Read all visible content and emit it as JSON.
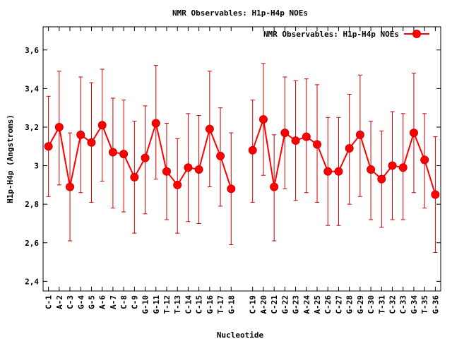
{
  "chart_data": {
    "type": "line",
    "title": "NMR Observables: H1p-H4p NOEs",
    "xlabel": "Nucleotide",
    "ylabel": "H1p-H4p (Angstroms)",
    "ylim": [
      2.35,
      3.72
    ],
    "yticks": [
      2.4,
      2.6,
      2.8,
      3.0,
      3.2,
      3.4,
      3.6
    ],
    "ytick_labels": [
      "2,4",
      "2,6",
      "2,8",
      "3",
      "3,2",
      "3,4",
      "3,6"
    ],
    "legend": {
      "label": "NMR Observables: H1p-H4p NOEs",
      "placement": "top-right"
    },
    "colors": {
      "series": "#ff0000",
      "errorbar": "#cc0000",
      "axis": "#000000"
    },
    "categories": [
      "C-1",
      "A-2",
      "C-3",
      "G-4",
      "G-5",
      "A-6",
      "A-7",
      "C-8",
      "C-9",
      "G-10",
      "G-11",
      "T-12",
      "T-13",
      "C-14",
      "C-15",
      "G-16",
      "T-17",
      "G-18",
      "",
      "C-19",
      "A-20",
      "C-21",
      "G-22",
      "G-23",
      "A-24",
      "A-25",
      "C-26",
      "C-27",
      "G-28",
      "G-29",
      "C-30",
      "T-31",
      "C-32",
      "C-33",
      "G-34",
      "T-35",
      "G-36"
    ],
    "values": [
      3.1,
      3.2,
      2.89,
      3.16,
      3.12,
      3.21,
      3.07,
      3.06,
      2.94,
      3.04,
      3.22,
      2.97,
      2.9,
      2.99,
      2.98,
      3.19,
      3.05,
      2.88,
      null,
      3.08,
      3.24,
      2.89,
      3.17,
      3.13,
      3.15,
      3.11,
      2.97,
      2.97,
      3.09,
      3.16,
      2.98,
      2.93,
      3.0,
      2.99,
      3.17,
      3.03,
      2.85
    ],
    "err_high": [
      3.36,
      3.49,
      3.17,
      3.46,
      3.43,
      3.5,
      3.35,
      3.34,
      3.23,
      3.31,
      3.52,
      3.22,
      3.14,
      3.27,
      3.26,
      3.49,
      3.3,
      3.17,
      null,
      3.34,
      3.53,
      3.16,
      3.46,
      3.44,
      3.45,
      3.42,
      3.25,
      3.25,
      3.37,
      3.47,
      3.23,
      3.18,
      3.28,
      3.27,
      3.48,
      3.27,
      3.15
    ],
    "err_low": [
      2.84,
      2.9,
      2.61,
      2.86,
      2.81,
      2.92,
      2.78,
      2.76,
      2.65,
      2.75,
      2.93,
      2.72,
      2.65,
      2.71,
      2.7,
      2.89,
      2.79,
      2.59,
      null,
      2.81,
      2.95,
      2.61,
      2.88,
      2.82,
      2.86,
      2.81,
      2.69,
      2.69,
      2.8,
      2.84,
      2.72,
      2.68,
      2.72,
      2.72,
      2.86,
      2.78,
      2.55
    ]
  }
}
